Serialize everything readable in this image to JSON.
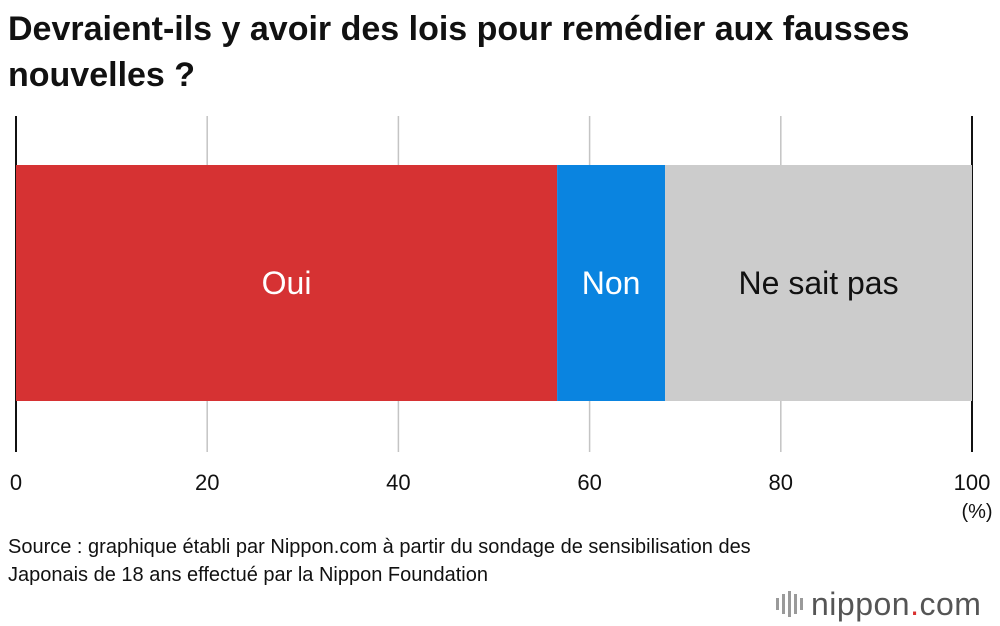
{
  "chart_data": {
    "type": "bar",
    "orientation": "horizontal-stacked",
    "title": "Devraient-ils y avoir des lois pour remédier aux fausses nouvelles ?",
    "series": [
      {
        "name": "Oui",
        "values": [
          56.6
        ],
        "color": "#d63233",
        "label_color": "#ffffff"
      },
      {
        "name": "Non",
        "values": [
          11.3
        ],
        "color": "#0a84e0",
        "label_color": "#ffffff"
      },
      {
        "name": "Ne sait pas",
        "values": [
          32.1
        ],
        "color": "#cccccc",
        "label_color": "#111111"
      }
    ],
    "xlim": [
      0,
      100
    ],
    "xticks": [
      "0",
      "20",
      "40",
      "60",
      "80",
      "100"
    ],
    "xunit": "(%)",
    "grid": true
  },
  "source": "Source : graphique établi par Nippon.com à partir du sondage de sensibilisation des Japonais de 18 ans effectué par la Nippon Foundation",
  "logo": {
    "name": "nippon",
    "dot": ".",
    "tld": "com"
  }
}
